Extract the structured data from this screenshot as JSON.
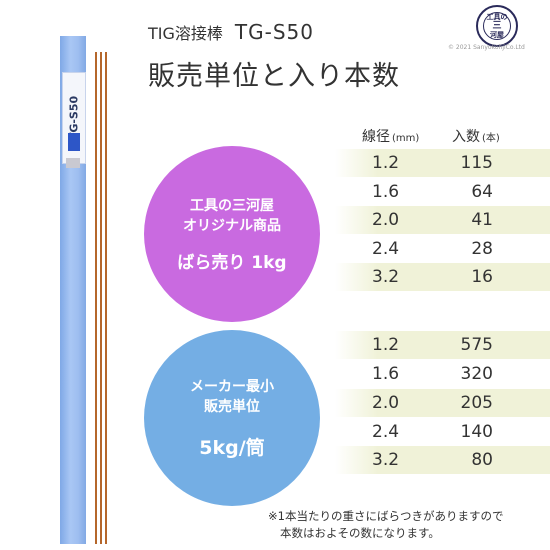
{
  "header": {
    "subtitle": "TIG溶接棒",
    "model": "TG-S50",
    "title": "販売単位と入り本数"
  },
  "logo": {
    "top": "工具の",
    "middle": "三",
    "bottom": "河屋"
  },
  "copyright": "© 2021 SanyokohjiCo.Ltd",
  "product": {
    "label": "TG-S50",
    "colors": {
      "tube": "#9ebef0",
      "rod": "#b5672b"
    }
  },
  "table": {
    "diameter_header": "線径",
    "diameter_unit": "(mm)",
    "quantity_header": "入数",
    "quantity_unit": "(本)",
    "groups": [
      {
        "circle_lines": [
          "工具の三河屋",
          "オリジナル商品"
        ],
        "circle_big": "ばら売り 1kg",
        "color": "#c96ae0",
        "rows": [
          {
            "diameter": "1.2",
            "quantity": "115"
          },
          {
            "diameter": "1.6",
            "quantity": "64"
          },
          {
            "diameter": "2.0",
            "quantity": "41"
          },
          {
            "diameter": "2.4",
            "quantity": "28"
          },
          {
            "diameter": "3.2",
            "quantity": "16"
          }
        ]
      },
      {
        "circle_lines": [
          "メーカー最小",
          "販売単位"
        ],
        "circle_big": "5kg/筒",
        "color": "#74aee4",
        "rows": [
          {
            "diameter": "1.2",
            "quantity": "575"
          },
          {
            "diameter": "1.6",
            "quantity": "320"
          },
          {
            "diameter": "2.0",
            "quantity": "205"
          },
          {
            "diameter": "2.4",
            "quantity": "140"
          },
          {
            "diameter": "3.2",
            "quantity": "80"
          }
        ]
      }
    ]
  },
  "note": {
    "line1": "※1本当たりの重さにばらつきがありますので",
    "line2": "本数はおよその数になります。"
  }
}
